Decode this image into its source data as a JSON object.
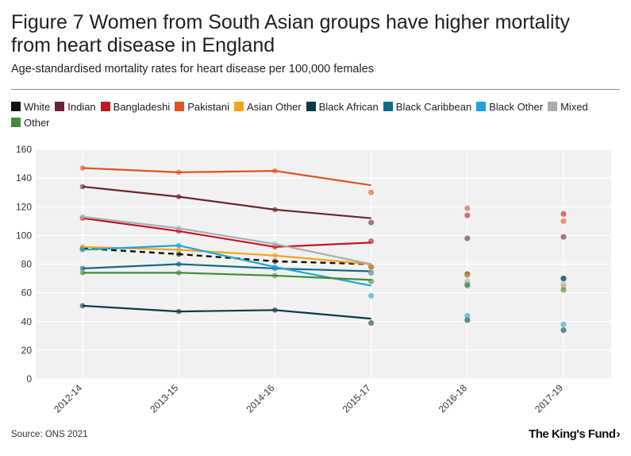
{
  "header": {
    "title": "Figure 7 Women from South Asian groups have higher mortality from heart disease in England",
    "subtitle": "Age-standardised mortality rates for heart disease per 100,000 females"
  },
  "footer": {
    "source": "Source: ONS 2021",
    "logo_text": "The King's Fund",
    "logo_chevron": "›"
  },
  "chart_data": {
    "type": "line",
    "title": "Figure 7 Women from South Asian groups have higher mortality from heart disease in England",
    "subtitle": "Age-standardised mortality rates for heart disease per 100,000 females",
    "categories": [
      "2012-14",
      "2013-15",
      "2014-16",
      "2015-17",
      "2016-18",
      "2017-19"
    ],
    "ylim": [
      0,
      160
    ],
    "yticks": [
      0,
      20,
      40,
      60,
      80,
      100,
      120,
      140,
      160
    ],
    "grid": true,
    "legend_position": "top",
    "series": [
      {
        "name": "White",
        "color": "#111111",
        "dashed": true,
        "line": [
          91,
          87,
          82,
          80
        ],
        "scatter": [
          78,
          73,
          70
        ]
      },
      {
        "name": "Indian",
        "color": "#6b2532",
        "dashed": false,
        "line": [
          134,
          127,
          118,
          112
        ],
        "scatter": [
          109,
          98,
          99
        ]
      },
      {
        "name": "Bangladeshi",
        "color": "#c5161d",
        "dashed": false,
        "line": [
          112,
          103,
          92,
          95
        ],
        "scatter": [
          96,
          114,
          115
        ]
      },
      {
        "name": "Pakistani",
        "color": "#e0531c",
        "dashed": false,
        "line": [
          147,
          144,
          145,
          135
        ],
        "scatter": [
          130,
          119,
          110
        ]
      },
      {
        "name": "Asian Other",
        "color": "#f5a41c",
        "dashed": false,
        "line": [
          92,
          90,
          86,
          80
        ],
        "scatter": [
          78,
          72,
          64
        ]
      },
      {
        "name": "Black African",
        "color": "#0c3a48",
        "dashed": false,
        "line": [
          51,
          47,
          48,
          42
        ],
        "scatter": [
          39,
          41,
          34
        ]
      },
      {
        "name": "Black Caribbean",
        "color": "#136a86",
        "dashed": false,
        "line": [
          77,
          80,
          77,
          75
        ],
        "scatter": [
          74,
          66,
          70
        ]
      },
      {
        "name": "Black Other",
        "color": "#1da5d6",
        "dashed": false,
        "line": [
          90,
          93,
          78,
          65
        ],
        "scatter": [
          58,
          44,
          38
        ]
      },
      {
        "name": "Mixed",
        "color": "#a9aeb3",
        "dashed": false,
        "line": [
          113,
          105,
          94,
          80
        ],
        "scatter": [
          74,
          68,
          66
        ]
      },
      {
        "name": "Other",
        "color": "#3e8c3a",
        "dashed": false,
        "line": [
          74,
          74,
          72,
          69
        ],
        "scatter": [
          68,
          65,
          62
        ]
      }
    ]
  }
}
